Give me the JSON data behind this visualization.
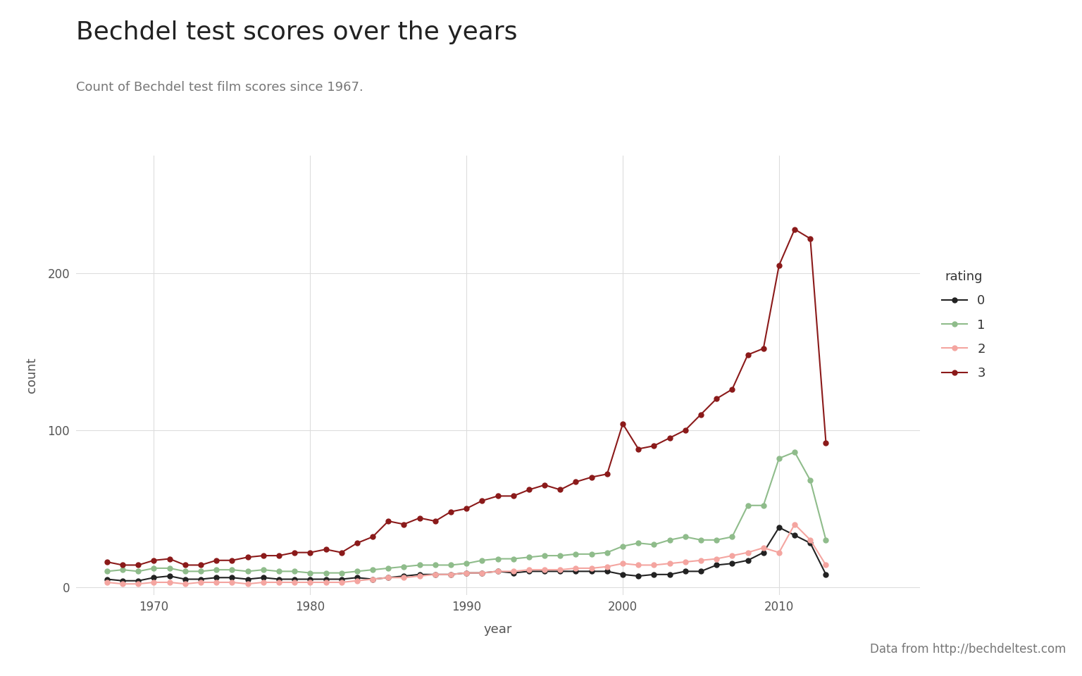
{
  "title": "Bechdel test scores over the years",
  "subtitle": "Count of Bechdel test film scores since 1967.",
  "xlabel": "year",
  "ylabel": "count",
  "source": "Data from http://bechdeltest.com",
  "legend_title": "rating",
  "background_color": "#ffffff",
  "plot_bg_color": "#ffffff",
  "grid_color": "#dddddd",
  "series": {
    "0": {
      "color": "#222222",
      "years": [
        1967,
        1968,
        1969,
        1970,
        1971,
        1972,
        1973,
        1974,
        1975,
        1976,
        1977,
        1978,
        1979,
        1980,
        1981,
        1982,
        1983,
        1984,
        1985,
        1986,
        1987,
        1988,
        1989,
        1990,
        1991,
        1992,
        1993,
        1994,
        1995,
        1996,
        1997,
        1998,
        1999,
        2000,
        2001,
        2002,
        2003,
        2004,
        2005,
        2006,
        2007,
        2008,
        2009,
        2010,
        2011,
        2012,
        2013
      ],
      "counts": [
        5,
        4,
        4,
        6,
        7,
        5,
        5,
        6,
        6,
        5,
        6,
        5,
        5,
        5,
        5,
        5,
        6,
        5,
        6,
        7,
        8,
        8,
        8,
        9,
        9,
        10,
        9,
        10,
        10,
        10,
        10,
        10,
        10,
        8,
        7,
        8,
        8,
        10,
        10,
        14,
        15,
        17,
        22,
        38,
        33,
        28,
        8
      ]
    },
    "1": {
      "color": "#8fbc8b",
      "years": [
        1967,
        1968,
        1969,
        1970,
        1971,
        1972,
        1973,
        1974,
        1975,
        1976,
        1977,
        1978,
        1979,
        1980,
        1981,
        1982,
        1983,
        1984,
        1985,
        1986,
        1987,
        1988,
        1989,
        1990,
        1991,
        1992,
        1993,
        1994,
        1995,
        1996,
        1997,
        1998,
        1999,
        2000,
        2001,
        2002,
        2003,
        2004,
        2005,
        2006,
        2007,
        2008,
        2009,
        2010,
        2011,
        2012,
        2013
      ],
      "counts": [
        10,
        11,
        10,
        12,
        12,
        10,
        10,
        11,
        11,
        10,
        11,
        10,
        10,
        9,
        9,
        9,
        10,
        11,
        12,
        13,
        14,
        14,
        14,
        15,
        17,
        18,
        18,
        19,
        20,
        20,
        21,
        21,
        22,
        26,
        28,
        27,
        30,
        32,
        30,
        30,
        32,
        52,
        52,
        82,
        86,
        68,
        30
      ]
    },
    "2": {
      "color": "#f4a5a0",
      "years": [
        1967,
        1968,
        1969,
        1970,
        1971,
        1972,
        1973,
        1974,
        1975,
        1976,
        1977,
        1978,
        1979,
        1980,
        1981,
        1982,
        1983,
        1984,
        1985,
        1986,
        1987,
        1988,
        1989,
        1990,
        1991,
        1992,
        1993,
        1994,
        1995,
        1996,
        1997,
        1998,
        1999,
        2000,
        2001,
        2002,
        2003,
        2004,
        2005,
        2006,
        2007,
        2008,
        2009,
        2010,
        2011,
        2012,
        2013
      ],
      "counts": [
        3,
        2,
        2,
        3,
        3,
        2,
        3,
        3,
        3,
        2,
        3,
        3,
        3,
        3,
        3,
        3,
        4,
        5,
        6,
        6,
        7,
        8,
        8,
        9,
        9,
        10,
        10,
        11,
        11,
        11,
        12,
        12,
        13,
        15,
        14,
        14,
        15,
        16,
        17,
        18,
        20,
        22,
        25,
        22,
        40,
        30,
        14
      ]
    },
    "3": {
      "color": "#8b1a1a",
      "years": [
        1967,
        1968,
        1969,
        1970,
        1971,
        1972,
        1973,
        1974,
        1975,
        1976,
        1977,
        1978,
        1979,
        1980,
        1981,
        1982,
        1983,
        1984,
        1985,
        1986,
        1987,
        1988,
        1989,
        1990,
        1991,
        1992,
        1993,
        1994,
        1995,
        1996,
        1997,
        1998,
        1999,
        2000,
        2001,
        2002,
        2003,
        2004,
        2005,
        2006,
        2007,
        2008,
        2009,
        2010,
        2011,
        2012,
        2013
      ],
      "counts": [
        16,
        14,
        14,
        17,
        18,
        14,
        14,
        17,
        17,
        19,
        20,
        20,
        22,
        22,
        24,
        22,
        28,
        32,
        42,
        40,
        44,
        42,
        48,
        50,
        55,
        58,
        58,
        62,
        65,
        62,
        67,
        70,
        72,
        104,
        88,
        90,
        95,
        100,
        110,
        120,
        126,
        148,
        152,
        205,
        228,
        222,
        92
      ]
    }
  },
  "ylim": [
    -5,
    275
  ],
  "yticks": [
    0,
    100,
    200
  ],
  "xlim": [
    1965,
    2019
  ],
  "xticks": [
    1970,
    1980,
    1990,
    2000,
    2010
  ],
  "title_fontsize": 26,
  "subtitle_fontsize": 13,
  "axis_label_fontsize": 13,
  "tick_fontsize": 12,
  "legend_fontsize": 13,
  "source_fontsize": 12,
  "linewidth": 1.5,
  "markersize": 5
}
